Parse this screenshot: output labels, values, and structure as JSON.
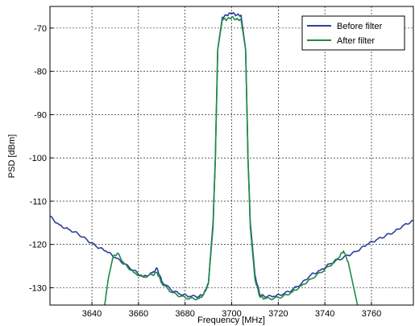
{
  "chart_data": {
    "type": "line",
    "title": "",
    "xlabel": "Frequency [MHz]",
    "ylabel": "PSD [dBm]",
    "xlim": [
      3622,
      3778
    ],
    "ylim": [
      -134,
      -65
    ],
    "x_ticks": [
      3640,
      3660,
      3680,
      3700,
      3720,
      3740,
      3760
    ],
    "y_ticks": [
      -70,
      -80,
      -90,
      -100,
      -110,
      -120,
      -130
    ],
    "x_tick_labels": [
      "3640",
      "3660",
      "3680",
      "3700",
      "3720",
      "3740",
      "3760"
    ],
    "y_tick_labels": [
      "-70",
      "-80",
      "-90",
      "-100",
      "-110",
      "-120",
      "-130"
    ],
    "grid": true,
    "grid_style": "dashed",
    "legend_position": "top-right",
    "series": [
      {
        "name": "Before filter",
        "color": "#2e3f9b",
        "x": [
          3622,
          3626,
          3630,
          3634,
          3638,
          3642,
          3646,
          3650,
          3654,
          3658,
          3662,
          3666,
          3668,
          3670,
          3674,
          3678,
          3682,
          3686,
          3688,
          3690,
          3692,
          3693,
          3694,
          3696,
          3698,
          3700,
          3702,
          3704,
          3706,
          3707,
          3708,
          3710,
          3712,
          3714,
          3718,
          3722,
          3726,
          3730,
          3734,
          3738,
          3742,
          3746,
          3750,
          3754,
          3758,
          3762,
          3766,
          3770,
          3774,
          3778
        ],
        "y": [
          -113.5,
          -115.5,
          -116.5,
          -117.5,
          -119,
          -120.5,
          -121.5,
          -123,
          -124.5,
          -126,
          -127.5,
          -126.5,
          -125.5,
          -128.5,
          -130.5,
          -131.5,
          -132,
          -132,
          -131.5,
          -129,
          -115,
          -100,
          -75,
          -67.5,
          -67,
          -66.5,
          -67,
          -67,
          -75,
          -100,
          -115,
          -127,
          -131.5,
          -132,
          -132,
          -131.5,
          -130.5,
          -129,
          -127,
          -126,
          -124.5,
          -123.5,
          -122.5,
          -121.5,
          -120,
          -119,
          -118,
          -117,
          -115.5,
          -114.5
        ]
      },
      {
        "name": "After filter",
        "color": "#1f8a45",
        "x": [
          3645.5,
          3647,
          3649,
          3651,
          3654,
          3658,
          3662,
          3666,
          3668,
          3670,
          3674,
          3678,
          3682,
          3686,
          3688,
          3690,
          3692,
          3693,
          3694,
          3696,
          3698,
          3700,
          3702,
          3704,
          3706,
          3707,
          3708,
          3710,
          3712,
          3714,
          3718,
          3722,
          3726,
          3730,
          3734,
          3738,
          3742,
          3746,
          3748,
          3750,
          3752,
          3754
        ],
        "y": [
          -134,
          -128,
          -123,
          -122,
          -124.5,
          -126.5,
          -127.5,
          -127,
          -126.5,
          -129,
          -131,
          -132,
          -132.5,
          -132.5,
          -131.5,
          -129,
          -116,
          -100,
          -75,
          -68,
          -68,
          -67.5,
          -68,
          -68,
          -75,
          -100,
          -116,
          -128,
          -132,
          -132.5,
          -132.5,
          -132,
          -131,
          -129.5,
          -128,
          -126.5,
          -125,
          -123,
          -121.5,
          -124,
          -129,
          -134
        ]
      }
    ]
  }
}
